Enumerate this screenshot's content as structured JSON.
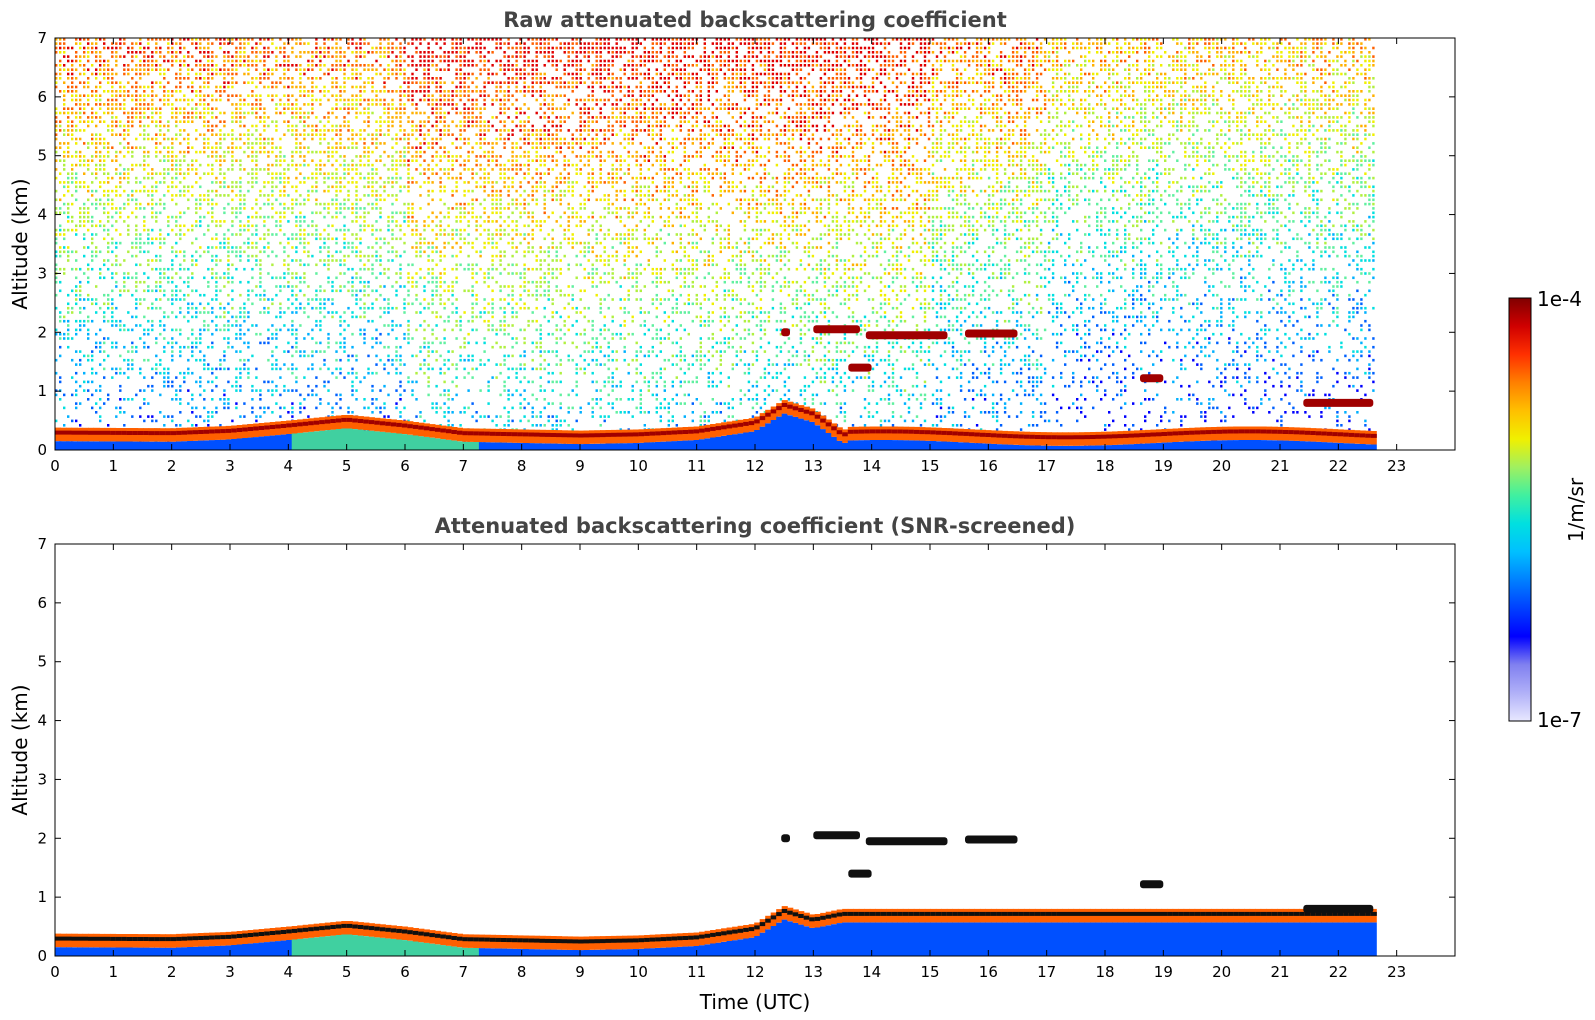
{
  "chart_data": [
    {
      "type": "heatmap",
      "title": "Raw attenuated backscattering coefficient",
      "xlabel": "",
      "ylabel": "Altitude (km)",
      "xlim": [
        0,
        24
      ],
      "ylim": [
        0,
        7
      ],
      "x_ticks": [
        0,
        1,
        2,
        3,
        4,
        5,
        6,
        7,
        8,
        9,
        10,
        11,
        12,
        13,
        14,
        15,
        16,
        17,
        18,
        19,
        20,
        21,
        22,
        23
      ],
      "y_ticks": [
        0,
        1,
        2,
        3,
        4,
        5,
        6,
        7
      ],
      "data_end_time": 22.65,
      "boundary_layer_top_km": [
        [
          0,
          0.33
        ],
        [
          2,
          0.32
        ],
        [
          3,
          0.36
        ],
        [
          4,
          0.45
        ],
        [
          5,
          0.55
        ],
        [
          6,
          0.45
        ],
        [
          7,
          0.32
        ],
        [
          8,
          0.3
        ],
        [
          9,
          0.28
        ],
        [
          10,
          0.3
        ],
        [
          11,
          0.35
        ],
        [
          12,
          0.5
        ],
        [
          12.5,
          0.8
        ],
        [
          13,
          0.65
        ],
        [
          13.5,
          0.3
        ]
      ],
      "cloud_layers": [
        {
          "t_start": 12.45,
          "t_end": 12.6,
          "altitude_km": 2.0
        },
        {
          "t_start": 13.0,
          "t_end": 13.8,
          "altitude_km": 2.05
        },
        {
          "t_start": 13.9,
          "t_end": 15.3,
          "altitude_km": 1.95
        },
        {
          "t_start": 15.6,
          "t_end": 16.5,
          "altitude_km": 1.98
        },
        {
          "t_start": 13.6,
          "t_end": 14.0,
          "altitude_km": 1.4
        },
        {
          "t_start": 18.6,
          "t_end": 19.0,
          "altitude_km": 1.22
        },
        {
          "t_start": 21.4,
          "t_end": 22.6,
          "altitude_km": 0.8
        }
      ]
    },
    {
      "type": "heatmap",
      "title": "Attenuated backscattering coefficient (SNR-screened)",
      "xlabel": "Time (UTC)",
      "ylabel": "Altitude (km)",
      "xlim": [
        0,
        24
      ],
      "ylim": [
        0,
        7
      ],
      "x_ticks": [
        0,
        1,
        2,
        3,
        4,
        5,
        6,
        7,
        8,
        9,
        10,
        11,
        12,
        13,
        14,
        15,
        16,
        17,
        18,
        19,
        20,
        21,
        22,
        23
      ],
      "y_ticks": [
        0,
        1,
        2,
        3,
        4,
        5,
        6,
        7
      ],
      "data_end_time": 22.65,
      "boundary_layer_top_km": [
        [
          0,
          0.33
        ],
        [
          2,
          0.32
        ],
        [
          3,
          0.36
        ],
        [
          4,
          0.45
        ],
        [
          5,
          0.55
        ],
        [
          6,
          0.45
        ],
        [
          7,
          0.32
        ],
        [
          8,
          0.3
        ],
        [
          9,
          0.28
        ],
        [
          10,
          0.3
        ],
        [
          11,
          0.35
        ],
        [
          12,
          0.5
        ],
        [
          12.5,
          0.8
        ],
        [
          13,
          0.65
        ],
        [
          13.5,
          0.75
        ],
        [
          22.6,
          0.75
        ]
      ],
      "cloud_layers": [
        {
          "t_start": 12.45,
          "t_end": 12.6,
          "altitude_km": 2.0
        },
        {
          "t_start": 13.0,
          "t_end": 13.8,
          "altitude_km": 2.05
        },
        {
          "t_start": 13.9,
          "t_end": 15.3,
          "altitude_km": 1.95
        },
        {
          "t_start": 15.6,
          "t_end": 16.5,
          "altitude_km": 1.98
        },
        {
          "t_start": 13.6,
          "t_end": 14.0,
          "altitude_km": 1.4
        },
        {
          "t_start": 18.6,
          "t_end": 19.0,
          "altitude_km": 1.22
        },
        {
          "t_start": 21.4,
          "t_end": 22.6,
          "altitude_km": 0.8
        }
      ]
    }
  ],
  "colorbar": {
    "max_label": "1e-4",
    "min_label": "1e-7",
    "unit_label": "1/m/sr",
    "colors": [
      "#e8e8ff",
      "#b0b0f8",
      "#8080f0",
      "#0000ff",
      "#0040ff",
      "#0080ff",
      "#00c0ff",
      "#00e0e0",
      "#40f0a0",
      "#a0f060",
      "#f0f000",
      "#ffc000",
      "#ff8000",
      "#ff3000",
      "#d00000",
      "#800000"
    ]
  }
}
